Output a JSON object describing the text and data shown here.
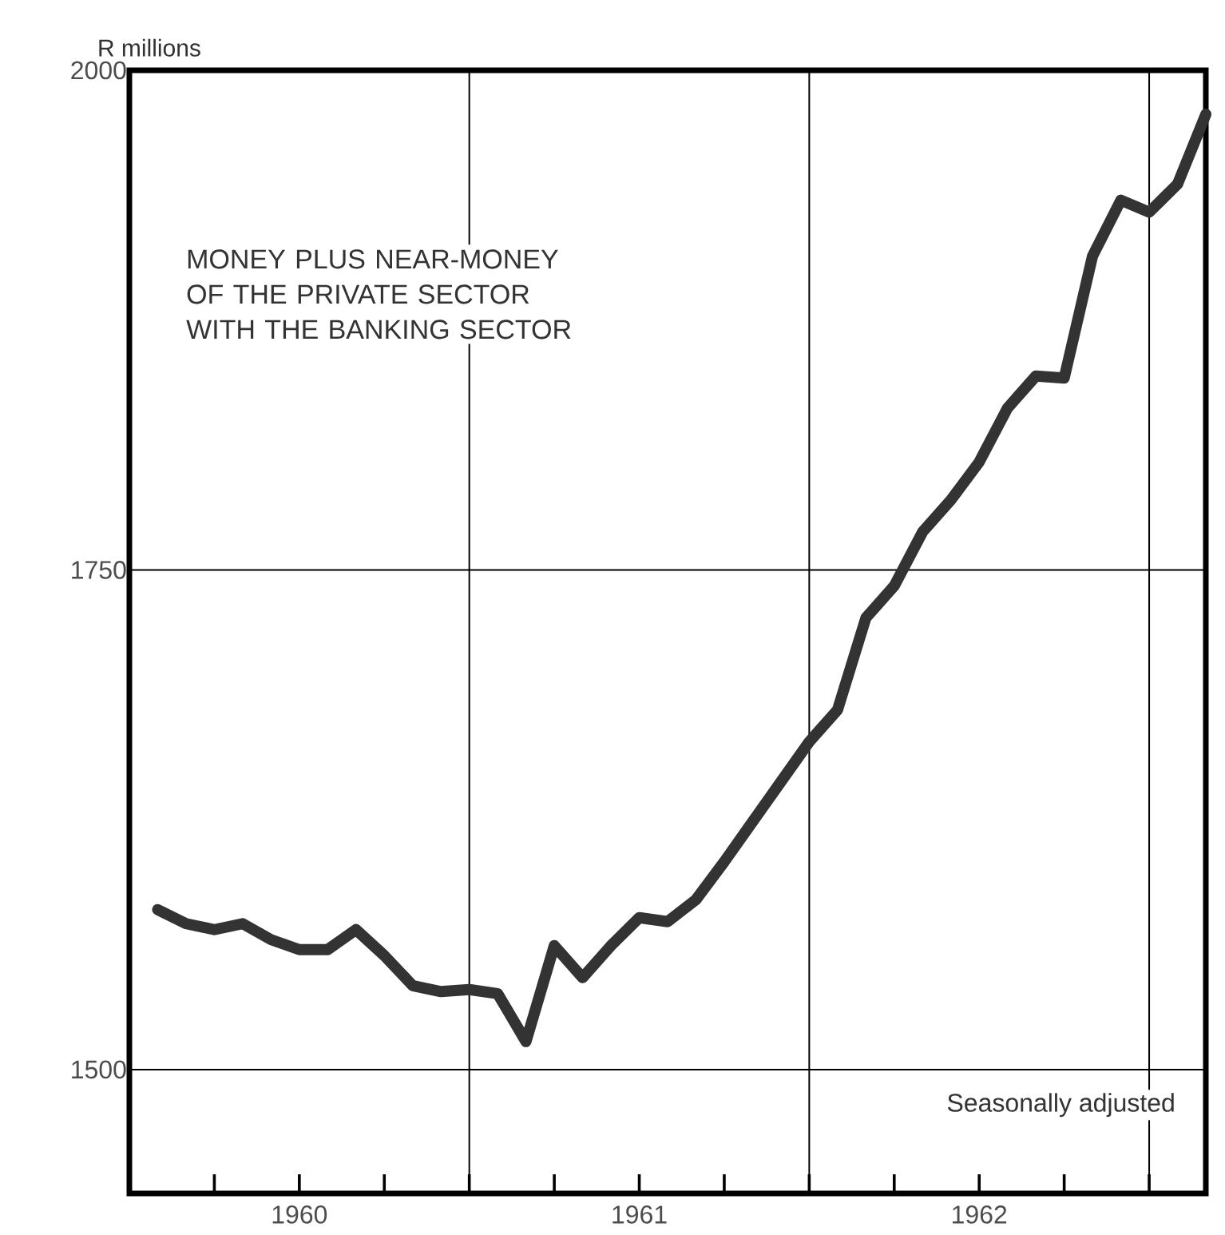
{
  "chart_data": {
    "type": "line",
    "title": "MONEY PLUS NEAR-MONEY OF THE PRIVATE SECTOR WITH THE BANKING SECTOR",
    "ylabel": "R millions",
    "annotations": [
      "Seasonally adjusted"
    ],
    "x": [
      "1960-02",
      "1960-03",
      "1960-04",
      "1960-05",
      "1960-06",
      "1960-07",
      "1960-08",
      "1960-09",
      "1960-10",
      "1960-11",
      "1960-12",
      "1961-01",
      "1961-02",
      "1961-03",
      "1961-04",
      "1961-05",
      "1961-06",
      "1961-07",
      "1961-08",
      "1961-09",
      "1961-10",
      "1961-11",
      "1961-12",
      "1962-01",
      "1962-02",
      "1962-03",
      "1962-04",
      "1962-05",
      "1962-06",
      "1962-07",
      "1962-08",
      "1962-09",
      "1962-10",
      "1962-11",
      "1962-12",
      "1963-01",
      "1963-02",
      "1963-03"
    ],
    "series": [
      {
        "color": "#333333",
        "values": [
          1580,
          1573,
          1570,
          1573,
          1565,
          1560,
          1560,
          1570,
          1557,
          1542,
          1539,
          1540,
          1538,
          1514,
          1562,
          1546,
          1562,
          1576,
          1574,
          1585,
          1604,
          1624,
          1644,
          1664,
          1680,
          1726,
          1742,
          1769,
          1785,
          1804,
          1831,
          1847,
          1846,
          1907,
          1935,
          1929,
          1943,
          1978
        ]
      }
    ],
    "xlim": [
      "1960-01",
      "1963-03"
    ],
    "xticks": [
      {
        "value": "1960-04",
        "label": null
      },
      {
        "value": "1960-07",
        "label": "1960"
      },
      {
        "value": "1960-10",
        "label": null
      },
      {
        "value": "1961-01",
        "label": null
      },
      {
        "value": "1961-04",
        "label": null
      },
      {
        "value": "1961-07",
        "label": "1961"
      },
      {
        "value": "1961-10",
        "label": null
      },
      {
        "value": "1962-01",
        "label": null
      },
      {
        "value": "1962-04",
        "label": null
      },
      {
        "value": "1962-07",
        "label": "1962"
      },
      {
        "value": "1962-10",
        "label": null
      },
      {
        "value": "1963-01",
        "label": null
      }
    ],
    "ylim": [
      1438,
      2000
    ],
    "yticks": [
      1500,
      1750,
      2000
    ],
    "grid": true,
    "line_style": "solid"
  }
}
